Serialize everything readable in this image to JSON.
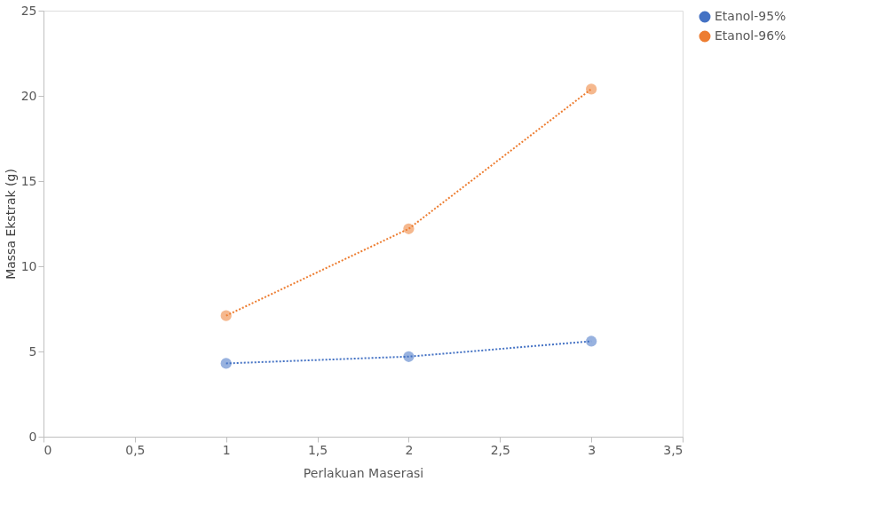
{
  "chart_data": {
    "type": "line",
    "xlabel": "Perlakuan Maserasi",
    "ylabel": "Massa Ekstrak (g)",
    "x": [
      1,
      2,
      3
    ],
    "series": [
      {
        "name": "Etanol-95%",
        "color": "#4472c4",
        "values": [
          4.3,
          4.7,
          5.6
        ]
      },
      {
        "name": "Etanol-96%",
        "color": "#ed7d31",
        "values": [
          7.1,
          12.2,
          20.4
        ]
      }
    ],
    "xlim": [
      0,
      3.5
    ],
    "xticks": [
      0,
      {
        "value": 0.5,
        "label": "0,5"
      },
      1,
      {
        "value": 1.5,
        "label": "1,5"
      },
      2,
      {
        "value": 2.5,
        "label": "2,5"
      },
      3,
      {
        "value": 3.5,
        "label": "3,5"
      }
    ],
    "ylim": [
      0,
      25
    ],
    "yticks": [
      0,
      5,
      10,
      15,
      20,
      25
    ],
    "grid": false,
    "legend": "right",
    "marker": "circle",
    "line_style": "dotted"
  }
}
